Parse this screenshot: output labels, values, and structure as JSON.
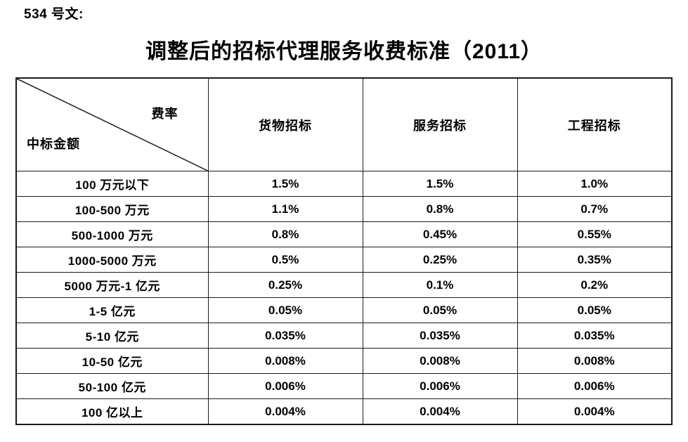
{
  "doc_label": "534 号文:",
  "title": "调整后的招标代理服务收费标准（2011）",
  "table": {
    "corner_top_right": "费率",
    "corner_bottom_left": "中标金额",
    "columns": [
      "货物招标",
      "服务招标",
      "工程招标"
    ],
    "rows": [
      {
        "label": "100 万元以下",
        "values": [
          "1.5%",
          "1.5%",
          "1.0%"
        ]
      },
      {
        "label": "100-500 万元",
        "values": [
          "1.1%",
          "0.8%",
          "0.7%"
        ]
      },
      {
        "label": "500-1000 万元",
        "values": [
          "0.8%",
          "0.45%",
          "0.55%"
        ]
      },
      {
        "label": "1000-5000 万元",
        "values": [
          "0.5%",
          "0.25%",
          "0.35%"
        ]
      },
      {
        "label": "5000 万元-1 亿元",
        "values": [
          "0.25%",
          "0.1%",
          "0.2%"
        ]
      },
      {
        "label": "1-5 亿元",
        "values": [
          "0.05%",
          "0.05%",
          "0.05%"
        ]
      },
      {
        "label": "5-10 亿元",
        "values": [
          "0.035%",
          "0.035%",
          "0.035%"
        ]
      },
      {
        "label": "10-50 亿元",
        "values": [
          "0.008%",
          "0.008%",
          "0.008%"
        ]
      },
      {
        "label": "50-100 亿元",
        "values": [
          "0.006%",
          "0.006%",
          "0.006%"
        ]
      },
      {
        "label": "100 亿以上",
        "values": [
          "0.004%",
          "0.004%",
          "0.004%"
        ]
      }
    ]
  },
  "colors": {
    "text": "#000000",
    "border": "#1a1a1a",
    "background": "#ffffff"
  }
}
